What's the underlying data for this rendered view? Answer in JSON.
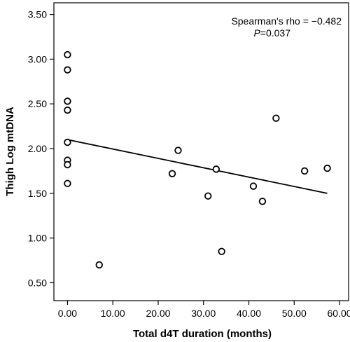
{
  "chart_data": {
    "type": "scatter",
    "title": "",
    "xlabel": "Total d4T duration (months)",
    "ylabel": "Thigh Log mtDNA",
    "xlim": [
      -3,
      62
    ],
    "ylim": [
      0.3,
      3.63
    ],
    "x_ticks": [
      0,
      10,
      20,
      30,
      40,
      50,
      60
    ],
    "x_tick_labels": [
      "0.00",
      "10.00",
      "20.00",
      "30.00",
      "40.00",
      "50.00",
      "60.00"
    ],
    "y_ticks": [
      0.5,
      1.0,
      1.5,
      2.0,
      2.5,
      3.0,
      3.5
    ],
    "y_tick_labels": [
      "0.50",
      "1.00",
      "1.50",
      "2.00",
      "2.50",
      "3.00",
      "3.50"
    ],
    "grid": false,
    "points": [
      {
        "x": 0,
        "y": 3.05
      },
      {
        "x": 0,
        "y": 2.88
      },
      {
        "x": 0,
        "y": 2.53
      },
      {
        "x": 0,
        "y": 2.43
      },
      {
        "x": 0,
        "y": 2.07
      },
      {
        "x": 0,
        "y": 1.87
      },
      {
        "x": 0,
        "y": 1.82
      },
      {
        "x": 0,
        "y": 1.61
      },
      {
        "x": 7,
        "y": 0.7
      },
      {
        "x": 23.1,
        "y": 1.72
      },
      {
        "x": 24.4,
        "y": 1.98
      },
      {
        "x": 31,
        "y": 1.47
      },
      {
        "x": 32.8,
        "y": 1.77
      },
      {
        "x": 34,
        "y": 0.85
      },
      {
        "x": 41,
        "y": 1.58
      },
      {
        "x": 43,
        "y": 1.41
      },
      {
        "x": 46,
        "y": 2.34
      },
      {
        "x": 52.3,
        "y": 1.75
      },
      {
        "x": 57.3,
        "y": 1.78
      }
    ],
    "fit_line": {
      "x": [
        0,
        57.3
      ],
      "y": [
        2.1,
        1.5
      ]
    },
    "annotation": {
      "line1": "Spearman's rho = −0.482",
      "line2_italic": "P",
      "line2_rest": "=0.037"
    }
  }
}
